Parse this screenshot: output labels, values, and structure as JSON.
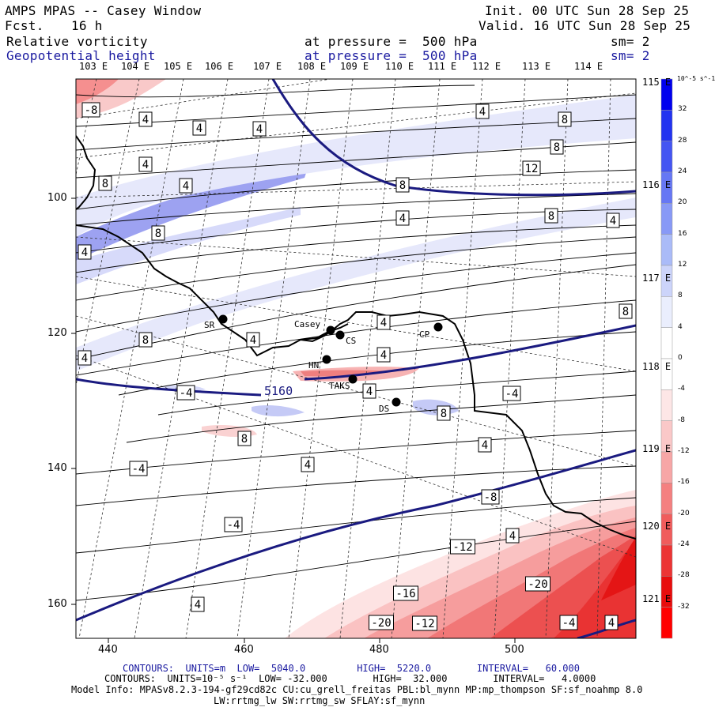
{
  "header": {
    "title": "AMPS MPAS -- Casey Window",
    "fcst_label": "Fcst.",
    "fcst_value": "16 h",
    "init": "Init. 00 UTC Sun 28 Sep 25",
    "valid": "Valid. 16 UTC Sun 28 Sep 25",
    "field1": "Relative vorticity",
    "field2": "Geopotential height",
    "pressure1": "at pressure =  500 hPa",
    "pressure2": "at pressure =  500 hPa",
    "sm1": "sm= 2",
    "sm2": "sm= 2"
  },
  "top_lon_labels": [
    "103 E",
    "104 E",
    "105 E",
    "106 E",
    "107 E",
    "108 E",
    "109 E",
    "110 E",
    "111 E",
    "112 E",
    "113 E",
    "114 E"
  ],
  "right_lon_labels": [
    "115 E",
    "116 E",
    "117 E",
    "118 E",
    "119 E",
    "120 E",
    "121 E"
  ],
  "left_axis": [
    "100",
    "120",
    "140",
    "160"
  ],
  "bottom_axis": [
    "440",
    "460",
    "480",
    "500"
  ],
  "stations": [
    {
      "id": "SR",
      "label": "SR"
    },
    {
      "id": "Casey",
      "label": "Casey"
    },
    {
      "id": "CS",
      "label": "CS"
    },
    {
      "id": "CP",
      "label": "CP"
    },
    {
      "id": "HN",
      "label": "HN"
    },
    {
      "id": "TAKS",
      "label": "TAKS"
    },
    {
      "id": "DS",
      "label": "DS"
    }
  ],
  "height_contour_label": "5160",
  "vorticity_labels": [
    "-8",
    "4",
    "4",
    "4",
    "4",
    "8",
    "8",
    "4",
    "12",
    "8",
    "4",
    "8",
    "8",
    "4",
    "8",
    "4",
    "4",
    "8",
    "4",
    "4",
    "8",
    "4",
    "4",
    "-4",
    "4",
    "-4",
    "8",
    "8",
    "4",
    "4",
    "-4",
    "-8",
    "-4",
    "4",
    "-12",
    "-20",
    "-16",
    "-20",
    "-12",
    "-4",
    "4",
    "4"
  ],
  "colorbar": {
    "unit": "10^-5 s^-1",
    "labels": [
      "32",
      "28",
      "24",
      "20",
      "16",
      "12",
      "8",
      "4",
      "0",
      "-4",
      "-8",
      "-12",
      "-16",
      "-20",
      "-24",
      "-28",
      "-32"
    ],
    "colors": [
      "#0000ee",
      "#2233f0",
      "#4455f2",
      "#6677f4",
      "#8899f6",
      "#aabbf8",
      "#ccd4fa",
      "#eaeefd",
      "#ffffff",
      "#ffffff",
      "#fde6e6",
      "#fac8c8",
      "#f7a6a6",
      "#f48080",
      "#f05c5c",
      "#ec3434",
      "#e80c0c",
      "#ff0000"
    ]
  },
  "footer": {
    "line1_label": "CONTOURS:  UNITS=m  LOW=  5040.0         HIGH=  5220.0        INTERVAL=   60.000",
    "line2_label": "CONTOURS:  UNITS=10⁻⁵ s⁻¹  LOW= -32.000        HIGH=  32.000        INTERVAL=   4.0000",
    "line3": "Model Info: MPASv8.2.3-194-gf29cd82c CU:cu_grell_freitas PBL:bl_mynn MP:mp_thompson SF:sf_noahmp 8.0",
    "line4": "LW:rrtmg_lw SW:rrtmg_sw SFLAY:sf_mynn"
  },
  "style_colors": {
    "height_contour": "#1a1a80",
    "footer_blue": "#1a1aa0"
  }
}
